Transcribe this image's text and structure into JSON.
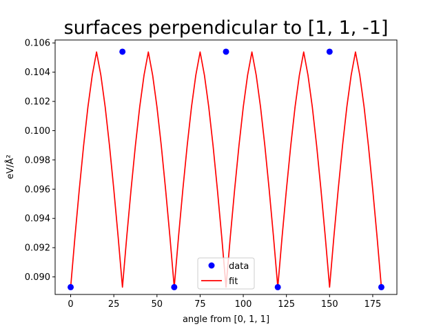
{
  "chart_data": {
    "type": "scatter",
    "title": "surfaces perpendicular to [1, 1, -1]",
    "xlabel": "angle from [0, 1, 1]",
    "ylabel": "eV/Å²",
    "xlim": [
      -9,
      189
    ],
    "ylim": [
      0.0888,
      0.1062
    ],
    "xticks": [
      0,
      25,
      50,
      75,
      100,
      125,
      150,
      175
    ],
    "yticks": [
      0.09,
      0.092,
      0.094,
      0.096,
      0.098,
      0.1,
      0.102,
      0.104,
      0.106
    ],
    "ytick_decimals": 3,
    "grid": false,
    "legend_placement": "lower-center",
    "series": [
      {
        "name": "data",
        "kind": "scatter",
        "color": "#0000ff",
        "x": [
          0,
          30,
          60,
          90,
          120,
          150,
          180
        ],
        "y": [
          0.0893,
          0.1054,
          0.0893,
          0.1054,
          0.0893,
          0.1054,
          0.0893
        ]
      },
      {
        "name": "fit",
        "kind": "line",
        "color": "#ff0000",
        "x": [
          0,
          2.5,
          5,
          7.5,
          10,
          12.5,
          15,
          17.5,
          20,
          22.5,
          25,
          27.5,
          30,
          32.5,
          35,
          37.5,
          40,
          42.5,
          45,
          47.5,
          50,
          52.5,
          55,
          57.5,
          60,
          62.5,
          65,
          67.5,
          70,
          72.5,
          75,
          77.5,
          80,
          82.5,
          85,
          87.5,
          90,
          92.5,
          95,
          97.5,
          100,
          102.5,
          105,
          107.5,
          110,
          112.5,
          115,
          117.5,
          120,
          122.5,
          125,
          127.5,
          130,
          132.5,
          135,
          137.5,
          140,
          142.5,
          145,
          147.5,
          150,
          152.5,
          155,
          157.5,
          160,
          162.5,
          165,
          167.5,
          170,
          172.5,
          175,
          177.5,
          180
        ],
        "y": [
          0.0893,
          0.09275,
          0.09598,
          0.09897,
          0.10162,
          0.10379,
          0.10538,
          0.10379,
          0.10162,
          0.09897,
          0.09598,
          0.09275,
          0.0893,
          0.09275,
          0.09598,
          0.09897,
          0.10162,
          0.10379,
          0.10538,
          0.10379,
          0.10162,
          0.09897,
          0.09598,
          0.09275,
          0.0893,
          0.09275,
          0.09598,
          0.09897,
          0.10162,
          0.10379,
          0.10538,
          0.10379,
          0.10162,
          0.09897,
          0.09598,
          0.09275,
          0.0893,
          0.09275,
          0.09598,
          0.09897,
          0.10162,
          0.10379,
          0.10538,
          0.10379,
          0.10162,
          0.09897,
          0.09598,
          0.09275,
          0.0893,
          0.09275,
          0.09598,
          0.09897,
          0.10162,
          0.10379,
          0.10538,
          0.10379,
          0.10162,
          0.09897,
          0.09598,
          0.09275,
          0.0893,
          0.09275,
          0.09598,
          0.09897,
          0.10162,
          0.10379,
          0.10538,
          0.10379,
          0.10162,
          0.09897,
          0.09598,
          0.09275,
          0.0893
        ]
      }
    ]
  }
}
